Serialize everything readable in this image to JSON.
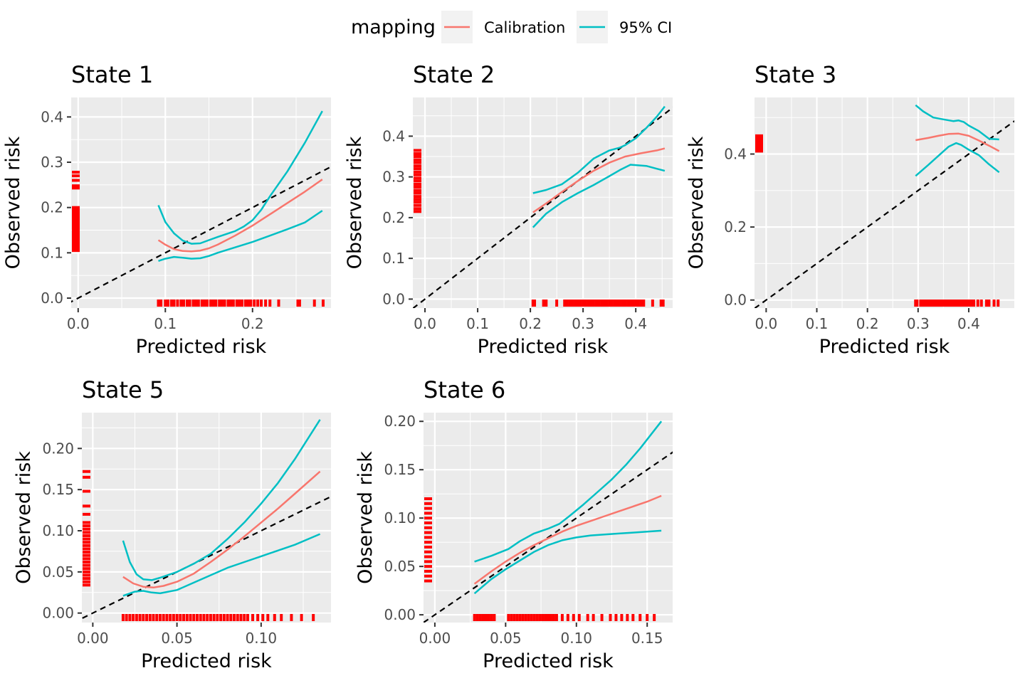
{
  "legend": {
    "title": "mapping",
    "items": [
      {
        "label": "Calibration",
        "color": "#F8766D"
      },
      {
        "label": "95% CI",
        "color": "#00BFC4"
      }
    ]
  },
  "colors": {
    "panel_bg": "#EBEBEB",
    "grid": "#FFFFFF",
    "rug": "#FF0000",
    "diagonal": "#000000"
  },
  "chart_data": [
    {
      "type": "line",
      "title": "State 1",
      "xlabel": "Predicted risk",
      "ylabel": "Observed risk",
      "xlim": [
        -0.008,
        0.29
      ],
      "ylim": [
        -0.022,
        0.443
      ],
      "xticks": [
        0.0,
        0.1,
        0.2
      ],
      "xtick_labels": [
        "0.0",
        "0.1",
        "0.2"
      ],
      "yticks": [
        0.0,
        0.1,
        0.2,
        0.3,
        0.4
      ],
      "ytick_labels": [
        "0.0",
        "0.1",
        "0.2",
        "0.3",
        "0.4"
      ],
      "series": [
        {
          "name": "Calibration",
          "x": [
            0.092,
            0.1,
            0.11,
            0.12,
            0.13,
            0.14,
            0.15,
            0.16,
            0.18,
            0.2,
            0.22,
            0.24,
            0.26,
            0.28
          ],
          "y": [
            0.128,
            0.118,
            0.108,
            0.104,
            0.103,
            0.105,
            0.11,
            0.118,
            0.138,
            0.16,
            0.185,
            0.21,
            0.235,
            0.262
          ]
        },
        {
          "name": "95% CI",
          "x": [
            0.092,
            0.1,
            0.11,
            0.12,
            0.13,
            0.14,
            0.15,
            0.16,
            0.18,
            0.19,
            0.2,
            0.21,
            0.22,
            0.24,
            0.26,
            0.28
          ],
          "y": [
            0.205,
            0.168,
            0.143,
            0.127,
            0.12,
            0.121,
            0.128,
            0.135,
            0.148,
            0.158,
            0.172,
            0.195,
            0.225,
            0.28,
            0.343,
            0.413
          ]
        },
        {
          "name": "95% CI",
          "x": [
            0.092,
            0.1,
            0.11,
            0.12,
            0.13,
            0.14,
            0.15,
            0.16,
            0.18,
            0.2,
            0.22,
            0.24,
            0.26,
            0.28
          ],
          "y": [
            0.082,
            0.087,
            0.091,
            0.089,
            0.087,
            0.088,
            0.093,
            0.1,
            0.112,
            0.124,
            0.138,
            0.152,
            0.167,
            0.193
          ]
        }
      ],
      "rug_x": [
        0.092,
        0.095,
        0.1,
        0.103,
        0.107,
        0.11,
        0.114,
        0.118,
        0.121,
        0.125,
        0.128,
        0.132,
        0.135,
        0.138,
        0.142,
        0.145,
        0.148,
        0.152,
        0.155,
        0.158,
        0.162,
        0.165,
        0.168,
        0.172,
        0.175,
        0.178,
        0.182,
        0.185,
        0.188,
        0.192,
        0.195,
        0.198,
        0.202,
        0.206,
        0.21,
        0.215,
        0.22,
        0.23,
        0.252,
        0.254,
        0.271,
        0.281
      ],
      "rug_y": [
        0.105,
        0.11,
        0.115,
        0.12,
        0.125,
        0.13,
        0.135,
        0.14,
        0.145,
        0.15,
        0.155,
        0.16,
        0.165,
        0.17,
        0.175,
        0.18,
        0.185,
        0.19,
        0.195,
        0.2,
        0.243,
        0.248,
        0.26,
        0.27,
        0.278
      ]
    },
    {
      "type": "line",
      "title": "State 2",
      "xlabel": "Predicted risk",
      "ylabel": "Observed risk",
      "xlim": [
        -0.023,
        0.47
      ],
      "ylim": [
        -0.022,
        0.495
      ],
      "xticks": [
        0.0,
        0.1,
        0.2,
        0.3,
        0.4
      ],
      "xtick_labels": [
        "0.0",
        "0.1",
        "0.2",
        "0.3",
        "0.4"
      ],
      "yticks": [
        0.0,
        0.1,
        0.2,
        0.3,
        0.4
      ],
      "ytick_labels": [
        "0.0",
        "0.1",
        "0.2",
        "0.3",
        "0.4"
      ],
      "series": [
        {
          "name": "Calibration",
          "x": [
            0.205,
            0.23,
            0.26,
            0.29,
            0.32,
            0.35,
            0.38,
            0.41,
            0.44,
            0.455
          ],
          "y": [
            0.213,
            0.235,
            0.263,
            0.29,
            0.315,
            0.335,
            0.35,
            0.358,
            0.365,
            0.37
          ]
        },
        {
          "name": "95% CI",
          "x": [
            0.205,
            0.23,
            0.26,
            0.29,
            0.32,
            0.35,
            0.37,
            0.38,
            0.4,
            0.42,
            0.44,
            0.455
          ],
          "y": [
            0.26,
            0.268,
            0.282,
            0.31,
            0.345,
            0.365,
            0.372,
            0.378,
            0.395,
            0.42,
            0.448,
            0.473
          ]
        },
        {
          "name": "95% CI",
          "x": [
            0.205,
            0.23,
            0.26,
            0.29,
            0.32,
            0.35,
            0.37,
            0.39,
            0.42,
            0.44,
            0.455
          ],
          "y": [
            0.176,
            0.21,
            0.238,
            0.26,
            0.28,
            0.302,
            0.317,
            0.33,
            0.327,
            0.32,
            0.315
          ]
        }
      ],
      "rug_x": [
        0.205,
        0.208,
        0.225,
        0.23,
        0.25,
        0.265,
        0.27,
        0.275,
        0.28,
        0.285,
        0.29,
        0.295,
        0.3,
        0.305,
        0.31,
        0.315,
        0.32,
        0.325,
        0.33,
        0.335,
        0.34,
        0.345,
        0.35,
        0.355,
        0.36,
        0.365,
        0.37,
        0.375,
        0.38,
        0.385,
        0.39,
        0.395,
        0.4,
        0.405,
        0.41,
        0.415,
        0.432,
        0.448,
        0.452
      ],
      "rug_y": [
        0.215,
        0.222,
        0.23,
        0.238,
        0.245,
        0.252,
        0.26,
        0.267,
        0.275,
        0.282,
        0.29,
        0.297,
        0.305,
        0.312,
        0.32,
        0.327,
        0.335,
        0.342,
        0.35,
        0.357,
        0.365
      ]
    },
    {
      "type": "line",
      "title": "State 3",
      "xlabel": "Predicted risk",
      "ylabel": "Observed risk",
      "xlim": [
        -0.023,
        0.49
      ],
      "ylim": [
        -0.022,
        0.555
      ],
      "xticks": [
        0.0,
        0.1,
        0.2,
        0.3,
        0.4
      ],
      "xtick_labels": [
        "0.0",
        "0.1",
        "0.2",
        "0.3",
        "0.4"
      ],
      "yticks": [
        0.0,
        0.2,
        0.4
      ],
      "ytick_labels": [
        "0.0",
        "0.2",
        "0.4"
      ],
      "series": [
        {
          "name": "Calibration",
          "x": [
            0.295,
            0.32,
            0.34,
            0.36,
            0.38,
            0.4,
            0.42,
            0.44,
            0.46
          ],
          "y": [
            0.438,
            0.444,
            0.45,
            0.455,
            0.456,
            0.45,
            0.437,
            0.423,
            0.408
          ]
        },
        {
          "name": "95% CI",
          "x": [
            0.295,
            0.31,
            0.33,
            0.35,
            0.37,
            0.38,
            0.39,
            0.4,
            0.42,
            0.44,
            0.46
          ],
          "y": [
            0.534,
            0.517,
            0.5,
            0.495,
            0.49,
            0.492,
            0.488,
            0.478,
            0.463,
            0.442,
            0.44
          ]
        },
        {
          "name": "95% CI",
          "x": [
            0.295,
            0.32,
            0.34,
            0.36,
            0.375,
            0.385,
            0.4,
            0.42,
            0.44,
            0.46
          ],
          "y": [
            0.34,
            0.37,
            0.395,
            0.42,
            0.43,
            0.425,
            0.412,
            0.397,
            0.372,
            0.35
          ]
        }
      ],
      "rug_x": [
        0.295,
        0.298,
        0.305,
        0.31,
        0.315,
        0.32,
        0.325,
        0.33,
        0.335,
        0.34,
        0.345,
        0.35,
        0.355,
        0.36,
        0.365,
        0.37,
        0.375,
        0.38,
        0.385,
        0.39,
        0.395,
        0.4,
        0.405,
        0.41,
        0.418,
        0.425,
        0.435,
        0.44,
        0.45,
        0.458
      ],
      "rug_y": [
        0.408,
        0.414,
        0.42,
        0.426,
        0.432,
        0.438,
        0.444,
        0.45
      ]
    },
    {
      "type": "line",
      "title": "State 5",
      "xlabel": "Predicted risk",
      "ylabel": "Observed risk",
      "xlim": [
        -0.0065,
        0.1415
      ],
      "ylim": [
        -0.0115,
        0.2435
      ],
      "xticks": [
        0.0,
        0.05,
        0.1
      ],
      "xtick_labels": [
        "0.00",
        "0.05",
        "0.10"
      ],
      "yticks": [
        0.0,
        0.05,
        0.1,
        0.15,
        0.2
      ],
      "ytick_labels": [
        "0.00",
        "0.05",
        "0.10",
        "0.15",
        "0.20"
      ],
      "series": [
        {
          "name": "Calibration",
          "x": [
            0.018,
            0.024,
            0.03,
            0.036,
            0.042,
            0.05,
            0.06,
            0.07,
            0.08,
            0.09,
            0.1,
            0.11,
            0.12,
            0.135
          ],
          "y": [
            0.044,
            0.036,
            0.032,
            0.031,
            0.033,
            0.038,
            0.048,
            0.062,
            0.077,
            0.093,
            0.11,
            0.127,
            0.145,
            0.172
          ]
        },
        {
          "name": "95% CI",
          "x": [
            0.018,
            0.022,
            0.026,
            0.03,
            0.035,
            0.04,
            0.05,
            0.06,
            0.07,
            0.08,
            0.09,
            0.1,
            0.11,
            0.12,
            0.135
          ],
          "y": [
            0.088,
            0.062,
            0.047,
            0.041,
            0.04,
            0.043,
            0.05,
            0.06,
            0.072,
            0.09,
            0.11,
            0.133,
            0.158,
            0.187,
            0.235
          ]
        },
        {
          "name": "95% CI",
          "x": [
            0.018,
            0.025,
            0.03,
            0.035,
            0.04,
            0.05,
            0.06,
            0.07,
            0.08,
            0.09,
            0.1,
            0.11,
            0.12,
            0.135
          ],
          "y": [
            0.021,
            0.026,
            0.027,
            0.025,
            0.024,
            0.028,
            0.037,
            0.046,
            0.055,
            0.062,
            0.069,
            0.076,
            0.083,
            0.096
          ]
        }
      ],
      "rug_x": [
        0.018,
        0.02,
        0.022,
        0.024,
        0.026,
        0.028,
        0.03,
        0.032,
        0.034,
        0.036,
        0.038,
        0.04,
        0.042,
        0.044,
        0.046,
        0.048,
        0.05,
        0.052,
        0.054,
        0.056,
        0.058,
        0.06,
        0.062,
        0.064,
        0.066,
        0.068,
        0.07,
        0.072,
        0.074,
        0.076,
        0.078,
        0.08,
        0.082,
        0.084,
        0.086,
        0.088,
        0.09,
        0.092,
        0.095,
        0.098,
        0.101,
        0.104,
        0.108,
        0.112,
        0.118,
        0.124,
        0.131
      ],
      "rug_y": [
        0.034,
        0.038,
        0.042,
        0.046,
        0.05,
        0.054,
        0.058,
        0.062,
        0.066,
        0.07,
        0.074,
        0.078,
        0.082,
        0.086,
        0.09,
        0.094,
        0.098,
        0.102,
        0.106,
        0.11,
        0.12,
        0.13,
        0.148,
        0.165,
        0.172
      ]
    },
    {
      "type": "line",
      "title": "State 6",
      "xlabel": "Predicted risk",
      "ylabel": "Observed risk",
      "xlim": [
        -0.008,
        0.168
      ],
      "ylim": [
        -0.008,
        0.209
      ],
      "xticks": [
        0.0,
        0.05,
        0.1,
        0.15
      ],
      "xtick_labels": [
        "0.00",
        "0.05",
        "0.10",
        "0.15"
      ],
      "yticks": [
        0.0,
        0.05,
        0.1,
        0.15,
        0.2
      ],
      "ytick_labels": [
        "0.00",
        "0.05",
        "0.10",
        "0.15",
        "0.20"
      ],
      "series": [
        {
          "name": "Calibration",
          "x": [
            0.028,
            0.04,
            0.05,
            0.06,
            0.07,
            0.08,
            0.09,
            0.1,
            0.11,
            0.12,
            0.13,
            0.14,
            0.15,
            0.16
          ],
          "y": [
            0.032,
            0.045,
            0.055,
            0.064,
            0.072,
            0.079,
            0.086,
            0.092,
            0.097,
            0.102,
            0.107,
            0.112,
            0.117,
            0.123
          ]
        },
        {
          "name": "95% CI",
          "x": [
            0.028,
            0.04,
            0.052,
            0.06,
            0.07,
            0.08,
            0.088,
            0.095,
            0.105,
            0.115,
            0.125,
            0.135,
            0.145,
            0.16
          ],
          "y": [
            0.055,
            0.061,
            0.068,
            0.076,
            0.084,
            0.089,
            0.094,
            0.102,
            0.114,
            0.127,
            0.14,
            0.155,
            0.172,
            0.2
          ]
        },
        {
          "name": "95% CI",
          "x": [
            0.028,
            0.04,
            0.05,
            0.06,
            0.07,
            0.08,
            0.09,
            0.1,
            0.11,
            0.12,
            0.13,
            0.14,
            0.15,
            0.16
          ],
          "y": [
            0.022,
            0.037,
            0.047,
            0.056,
            0.065,
            0.072,
            0.077,
            0.08,
            0.082,
            0.083,
            0.084,
            0.085,
            0.086,
            0.087
          ]
        }
      ],
      "rug_x": [
        0.028,
        0.03,
        0.032,
        0.034,
        0.036,
        0.038,
        0.04,
        0.042,
        0.052,
        0.054,
        0.056,
        0.058,
        0.06,
        0.062,
        0.064,
        0.066,
        0.068,
        0.07,
        0.072,
        0.074,
        0.076,
        0.078,
        0.08,
        0.082,
        0.084,
        0.086,
        0.09,
        0.094,
        0.098,
        0.102,
        0.108,
        0.112,
        0.118,
        0.124,
        0.128,
        0.132,
        0.136,
        0.14,
        0.145,
        0.15,
        0.155
      ],
      "rug_y": [
        0.035,
        0.04,
        0.045,
        0.05,
        0.055,
        0.06,
        0.065,
        0.07,
        0.075,
        0.08,
        0.085,
        0.09,
        0.095,
        0.1,
        0.105,
        0.11,
        0.115,
        0.12
      ]
    }
  ]
}
